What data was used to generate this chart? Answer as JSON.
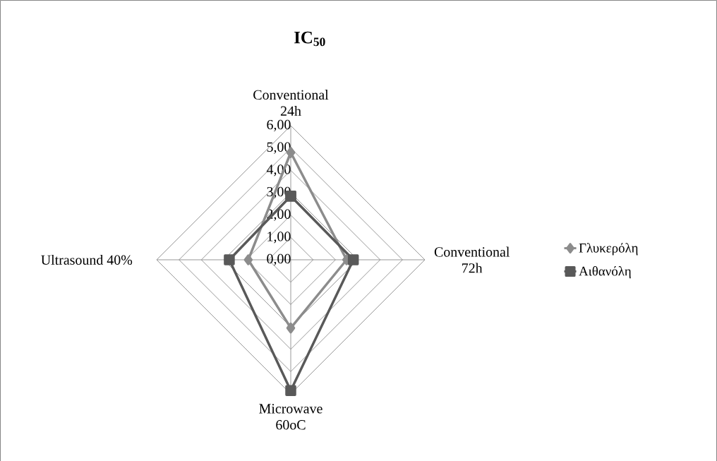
{
  "chart_data": {
    "type": "radar",
    "title": "IC$_{50}$",
    "categories": [
      "Conventional 24h",
      "Conventional 72h",
      "Microwave 60oC",
      "Ultrasound 40%"
    ],
    "series": [
      {
        "name": "Γλυκερόλη",
        "color": "#8c8c8c",
        "values": [
          4.8,
          2.5,
          3.05,
          1.9
        ],
        "marker": "diamond"
      },
      {
        "name": "Αιθανόλη",
        "color": "#595959",
        "values": [
          2.85,
          2.8,
          5.85,
          2.75
        ],
        "marker": "square"
      }
    ],
    "ylim": [
      0,
      6
    ],
    "yticks": [
      {
        "value": 0,
        "label": "0,00"
      },
      {
        "value": 1,
        "label": "1,00"
      },
      {
        "value": 2,
        "label": "2,00"
      },
      {
        "value": 3,
        "label": "3,00"
      },
      {
        "value": 4,
        "label": "4,00"
      },
      {
        "value": 5,
        "label": "5,00"
      },
      {
        "value": 6,
        "label": "6,00"
      }
    ],
    "grid": true,
    "legend": "right"
  }
}
